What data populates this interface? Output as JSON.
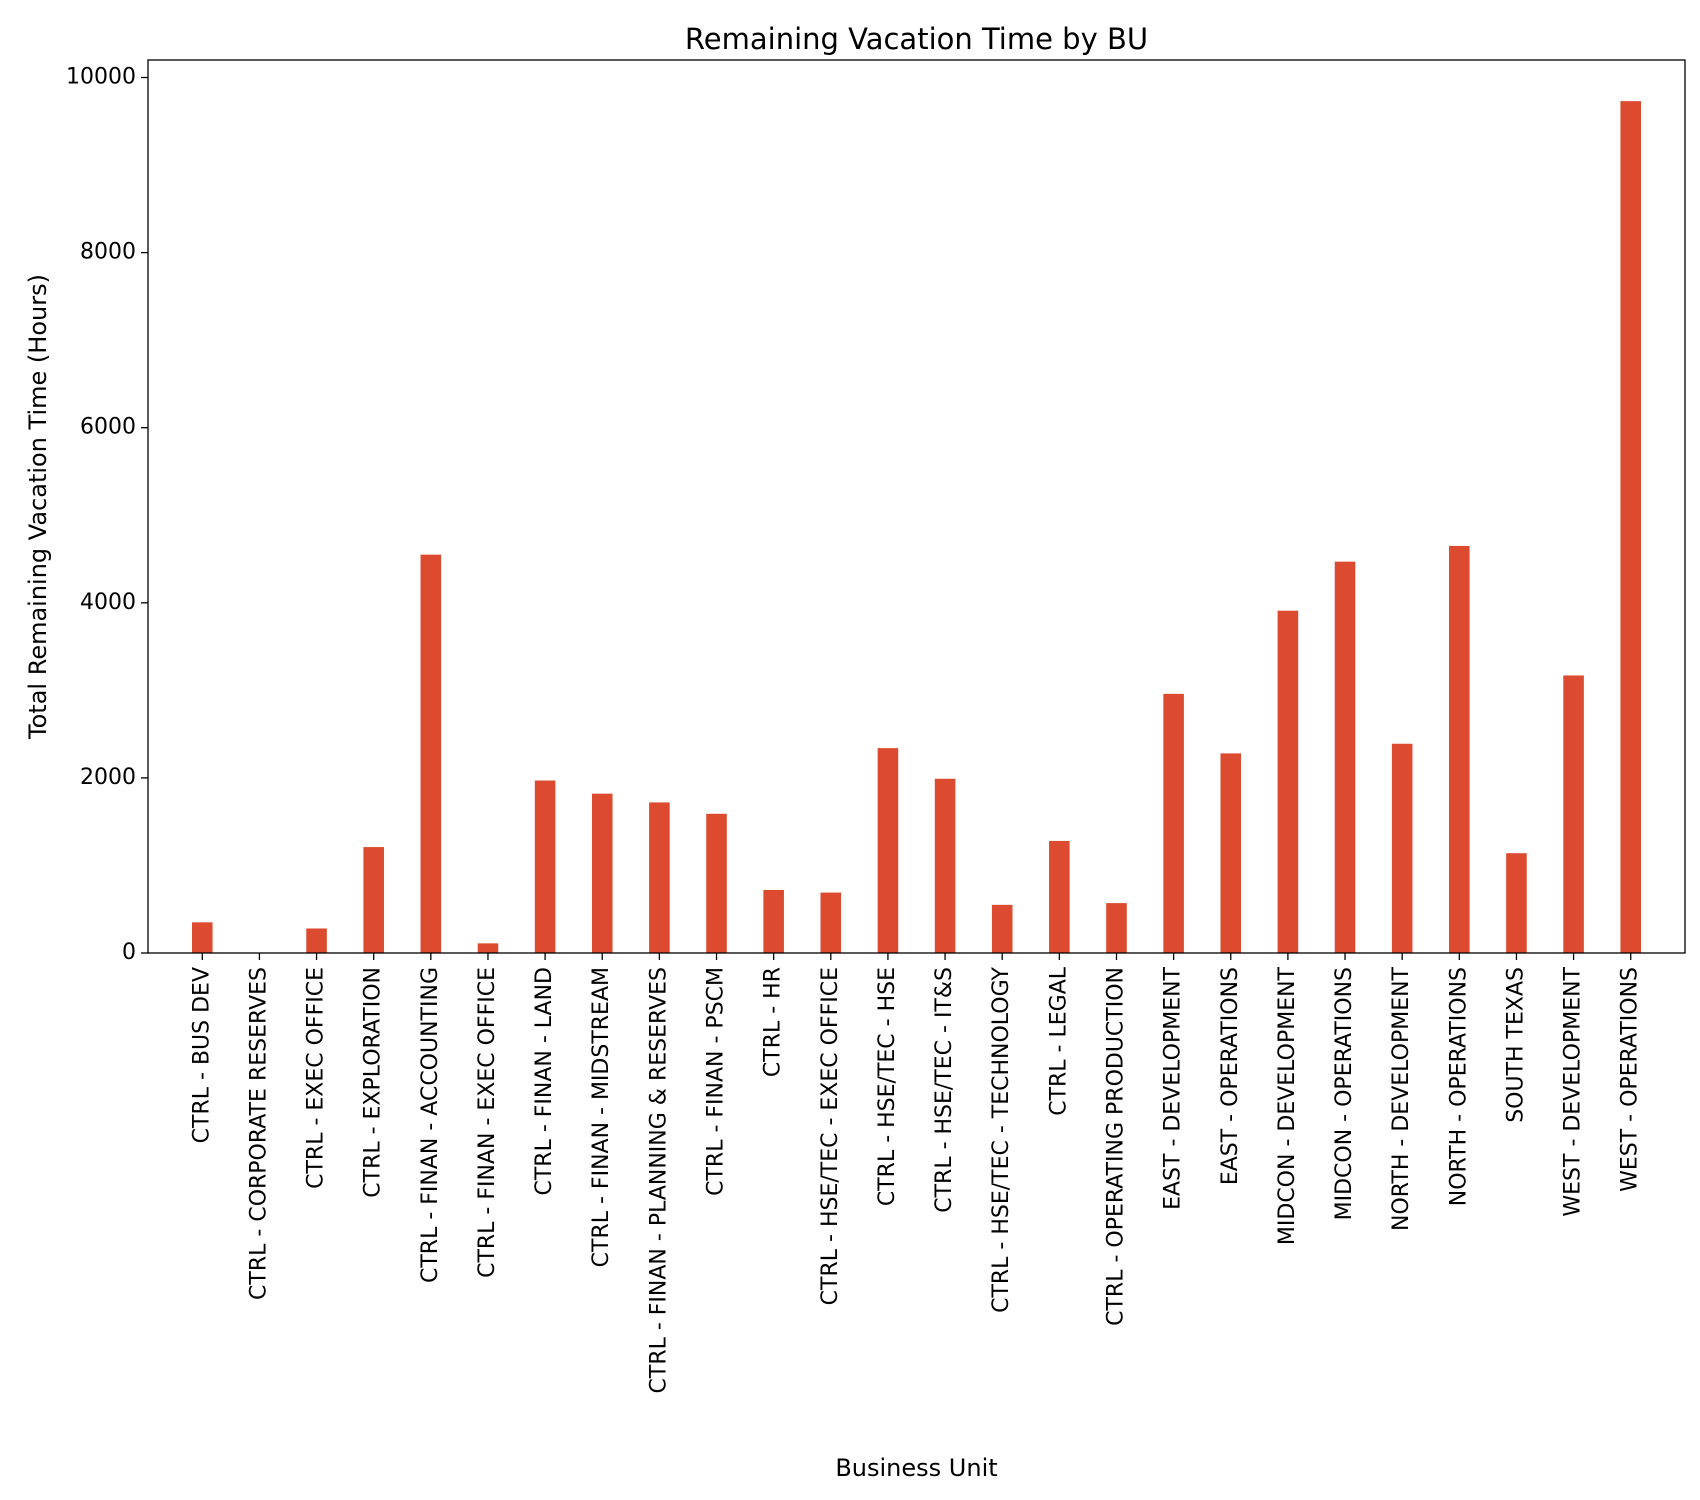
{
  "chart_data": {
    "type": "bar",
    "title": "Remaining Vacation Time by BU",
    "xlabel": "Business Unit",
    "ylabel": "Total Remaining Vacation Time (Hours)",
    "ylim": [
      0,
      10200
    ],
    "yticks": [
      0,
      2000,
      4000,
      6000,
      8000,
      10000
    ],
    "grid": false,
    "bar_color": "#dc4a30",
    "categories": [
      "CTRL - BUS DEV",
      "CTRL - CORPORATE RESERVES",
      "CTRL - EXEC OFFICE",
      "CTRL - EXPLORATION",
      "CTRL - FINAN - ACCOUNTING",
      "CTRL - FINAN - EXEC OFFICE",
      "CTRL - FINAN - LAND",
      "CTRL - FINAN - MIDSTREAM",
      "CTRL - FINAN - PLANNING & RESERVES",
      "CTRL - FINAN - PSCM",
      "CTRL - HR",
      "CTRL - HSE/TEC - EXEC OFFICE",
      "CTRL - HSE/TEC - HSE",
      "CTRL - HSE/TEC - IT&S",
      "CTRL - HSE/TEC - TECHNOLOGY",
      "CTRL - LEGAL",
      "CTRL - OPERATING PRODUCTION",
      "EAST - DEVELOPMENT",
      "EAST - OPERATIONS",
      "MIDCON - DEVELOPMENT",
      "MIDCON - OPERATIONS",
      "NORTH - DEVELOPMENT",
      "NORTH - OPERATIONS",
      "SOUTH TEXAS",
      "WEST - DEVELOPMENT",
      "WEST - OPERATIONS"
    ],
    "values": [
      350,
      0,
      280,
      1210,
      4550,
      110,
      1970,
      1820,
      1720,
      1590,
      720,
      690,
      2340,
      1990,
      550,
      1280,
      570,
      2960,
      2280,
      3910,
      4470,
      2390,
      4650,
      1140,
      3170,
      9730
    ]
  }
}
